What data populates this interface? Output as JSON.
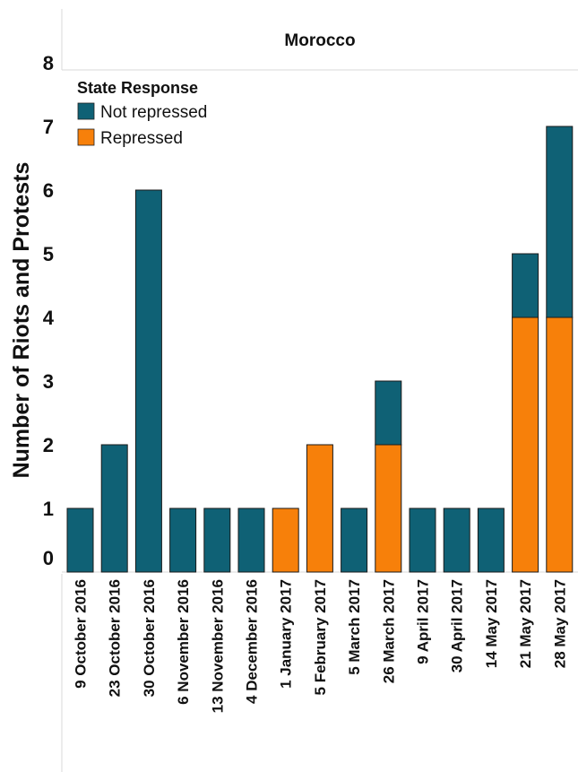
{
  "chart_data": {
    "type": "bar",
    "stacked": true,
    "title": "Morocco",
    "ylabel": "Number of Riots and Protests",
    "xlabel": "",
    "ylim": [
      0,
      8
    ],
    "yticks": [
      0,
      1,
      2,
      3,
      4,
      5,
      6,
      7,
      8
    ],
    "grid": false,
    "legend": {
      "title": "State Response",
      "position": "top-left"
    },
    "categories": [
      "9 October 2016",
      "23 October 2016",
      "30 October 2016",
      "6 November 2016",
      "13 November 2016",
      "4 December 2016",
      "1 January 2017",
      "5 February 2017",
      "5 March 2017",
      "26 March 2017",
      "9 April 2017",
      "30 April 2017",
      "14 May 2017",
      "21 May 2017",
      "28 May 2017"
    ],
    "series": [
      {
        "name": "Repressed",
        "color": "#f7800a",
        "values": [
          0,
          0,
          0,
          0,
          0,
          0,
          1,
          2,
          0,
          2,
          0,
          0,
          0,
          4,
          4
        ]
      },
      {
        "name": "Not repressed",
        "color": "#0f6175",
        "values": [
          1,
          2,
          6,
          1,
          1,
          1,
          0,
          0,
          1,
          1,
          1,
          1,
          1,
          1,
          3
        ]
      }
    ],
    "legend_order": [
      "Not repressed",
      "Repressed"
    ]
  }
}
